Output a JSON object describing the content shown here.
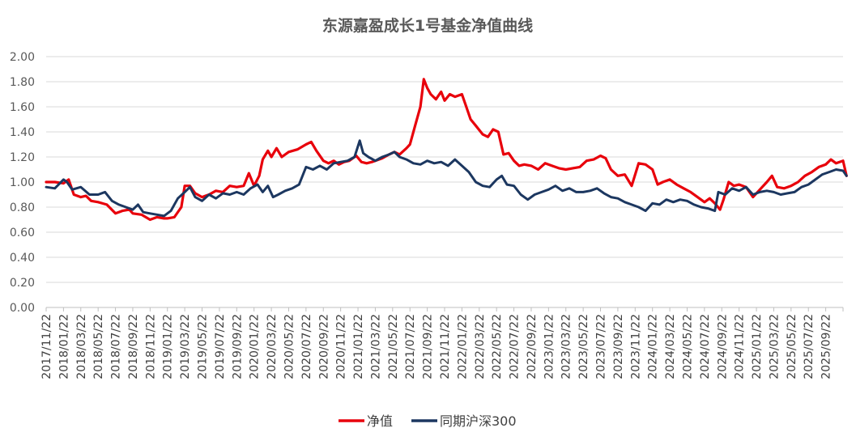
{
  "chart_data": {
    "type": "line",
    "title": "东源嘉盈成长1号基金净值曲线",
    "ylim": [
      0,
      2
    ],
    "yticks": [
      "0.00",
      "0.20",
      "0.40",
      "0.60",
      "0.80",
      "1.00",
      "1.20",
      "1.40",
      "1.60",
      "1.80",
      "2.00"
    ],
    "x_tick_labels": [
      "2017/11/22",
      "2018/01/22",
      "2018/03/22",
      "2018/05/22",
      "2018/07/22",
      "2018/09/22",
      "2018/11/22",
      "2019/01/22",
      "2019/03/22",
      "2019/05/22",
      "2019/07/22",
      "2019/09/22",
      "2020/01/22",
      "2020/03/22",
      "2020/05/22",
      "2020/07/22",
      "2020/09/22",
      "2020/11/22",
      "2021/01/22",
      "2021/03/22",
      "2021/05/22",
      "2021/07/22",
      "2021/09/22",
      "2021/11/22",
      "2022/01/22",
      "2022/03/22",
      "2022/05/22",
      "2022/07/22",
      "2022/09/22",
      "2023/01/22",
      "2023/03/22",
      "2023/05/22",
      "2023/07/22",
      "2023/09/22",
      "2023/11/22",
      "2024/01/22",
      "2024/03/22",
      "2024/05/22",
      "2024/07/22",
      "2024/09/22",
      "2024/11/22",
      "2025/01/22",
      "2025/03/22",
      "2025/05/22",
      "2025/07/22",
      "2025/09/22"
    ],
    "grid": true,
    "legend_position": "bottom",
    "series": [
      {
        "name": "净值",
        "color": "#e8000b",
        "points": [
          [
            0,
            1.0
          ],
          [
            0.5,
            1.0
          ],
          [
            1,
            0.99
          ],
          [
            1.3,
            1.02
          ],
          [
            1.6,
            0.9
          ],
          [
            2,
            0.88
          ],
          [
            2.3,
            0.89
          ],
          [
            2.6,
            0.85
          ],
          [
            3,
            0.84
          ],
          [
            3.5,
            0.82
          ],
          [
            4,
            0.75
          ],
          [
            4.4,
            0.77
          ],
          [
            4.8,
            0.78
          ],
          [
            5,
            0.75
          ],
          [
            5.5,
            0.74
          ],
          [
            6,
            0.7
          ],
          [
            6.4,
            0.72
          ],
          [
            6.8,
            0.71
          ],
          [
            7,
            0.71
          ],
          [
            7.4,
            0.72
          ],
          [
            7.8,
            0.8
          ],
          [
            8,
            0.97
          ],
          [
            8.3,
            0.97
          ],
          [
            8.6,
            0.91
          ],
          [
            9,
            0.88
          ],
          [
            9.4,
            0.9
          ],
          [
            9.8,
            0.93
          ],
          [
            10.2,
            0.92
          ],
          [
            10.6,
            0.97
          ],
          [
            11,
            0.96
          ],
          [
            11.4,
            0.97
          ],
          [
            11.7,
            1.07
          ],
          [
            12,
            0.97
          ],
          [
            12.3,
            1.05
          ],
          [
            12.5,
            1.18
          ],
          [
            12.8,
            1.25
          ],
          [
            13,
            1.2
          ],
          [
            13.3,
            1.27
          ],
          [
            13.6,
            1.2
          ],
          [
            14,
            1.24
          ],
          [
            14.5,
            1.26
          ],
          [
            15,
            1.3
          ],
          [
            15.3,
            1.32
          ],
          [
            15.6,
            1.25
          ],
          [
            16,
            1.17
          ],
          [
            16.3,
            1.15
          ],
          [
            16.6,
            1.17
          ],
          [
            16.9,
            1.14
          ],
          [
            17.2,
            1.16
          ],
          [
            17.5,
            1.17
          ],
          [
            17.9,
            1.21
          ],
          [
            18.2,
            1.16
          ],
          [
            18.5,
            1.15
          ],
          [
            18.8,
            1.16
          ],
          [
            19,
            1.17
          ],
          [
            19.4,
            1.19
          ],
          [
            19.8,
            1.22
          ],
          [
            20.1,
            1.24
          ],
          [
            20.4,
            1.22
          ],
          [
            20.8,
            1.27
          ],
          [
            21,
            1.3
          ],
          [
            21.3,
            1.45
          ],
          [
            21.6,
            1.6
          ],
          [
            21.8,
            1.82
          ],
          [
            22,
            1.75
          ],
          [
            22.2,
            1.7
          ],
          [
            22.5,
            1.66
          ],
          [
            22.8,
            1.72
          ],
          [
            23,
            1.65
          ],
          [
            23.3,
            1.7
          ],
          [
            23.6,
            1.68
          ],
          [
            24,
            1.7
          ],
          [
            24.2,
            1.62
          ],
          [
            24.5,
            1.5
          ],
          [
            24.8,
            1.45
          ],
          [
            25.2,
            1.38
          ],
          [
            25.5,
            1.36
          ],
          [
            25.8,
            1.42
          ],
          [
            26.1,
            1.4
          ],
          [
            26.4,
            1.22
          ],
          [
            26.7,
            1.23
          ],
          [
            27,
            1.17
          ],
          [
            27.3,
            1.13
          ],
          [
            27.6,
            1.14
          ],
          [
            28,
            1.13
          ],
          [
            28.4,
            1.1
          ],
          [
            28.8,
            1.15
          ],
          [
            29.2,
            1.13
          ],
          [
            29.6,
            1.11
          ],
          [
            30,
            1.1
          ],
          [
            30.4,
            1.11
          ],
          [
            30.8,
            1.12
          ],
          [
            31.2,
            1.17
          ],
          [
            31.6,
            1.18
          ],
          [
            32,
            1.21
          ],
          [
            32.3,
            1.19
          ],
          [
            32.6,
            1.1
          ],
          [
            33,
            1.05
          ],
          [
            33.4,
            1.06
          ],
          [
            33.8,
            0.97
          ],
          [
            34.2,
            1.15
          ],
          [
            34.6,
            1.14
          ],
          [
            35,
            1.1
          ],
          [
            35.3,
            0.98
          ],
          [
            35.6,
            1.0
          ],
          [
            36,
            1.02
          ],
          [
            36.4,
            0.98
          ],
          [
            36.8,
            0.95
          ],
          [
            37.2,
            0.92
          ],
          [
            37.6,
            0.88
          ],
          [
            38,
            0.84
          ],
          [
            38.3,
            0.87
          ],
          [
            38.6,
            0.83
          ],
          [
            38.9,
            0.78
          ],
          [
            39.1,
            0.86
          ],
          [
            39.4,
            1.0
          ],
          [
            39.7,
            0.97
          ],
          [
            40,
            0.98
          ],
          [
            40.4,
            0.96
          ],
          [
            40.8,
            0.88
          ],
          [
            41.2,
            0.94
          ],
          [
            41.6,
            1.0
          ],
          [
            41.9,
            1.05
          ],
          [
            42.2,
            0.96
          ],
          [
            42.6,
            0.95
          ],
          [
            43,
            0.97
          ],
          [
            43.4,
            1.0
          ],
          [
            43.8,
            1.05
          ],
          [
            44.2,
            1.08
          ],
          [
            44.6,
            1.12
          ],
          [
            45,
            1.14
          ],
          [
            45.3,
            1.18
          ],
          [
            45.6,
            1.15
          ],
          [
            46,
            1.17
          ],
          [
            46.2,
            1.05
          ]
        ]
      },
      {
        "name": "同期沪深300",
        "color": "#1c3760",
        "points": [
          [
            0,
            0.96
          ],
          [
            0.5,
            0.95
          ],
          [
            1,
            1.02
          ],
          [
            1.2,
            1.0
          ],
          [
            1.5,
            0.94
          ],
          [
            2,
            0.96
          ],
          [
            2.5,
            0.9
          ],
          [
            3,
            0.9
          ],
          [
            3.4,
            0.92
          ],
          [
            3.8,
            0.85
          ],
          [
            4.2,
            0.82
          ],
          [
            4.6,
            0.8
          ],
          [
            5,
            0.78
          ],
          [
            5.3,
            0.82
          ],
          [
            5.6,
            0.76
          ],
          [
            6,
            0.75
          ],
          [
            6.4,
            0.74
          ],
          [
            6.8,
            0.73
          ],
          [
            7.2,
            0.77
          ],
          [
            7.6,
            0.87
          ],
          [
            8,
            0.92
          ],
          [
            8.3,
            0.96
          ],
          [
            8.6,
            0.88
          ],
          [
            9,
            0.85
          ],
          [
            9.4,
            0.9
          ],
          [
            9.8,
            0.87
          ],
          [
            10.2,
            0.91
          ],
          [
            10.6,
            0.9
          ],
          [
            11,
            0.92
          ],
          [
            11.4,
            0.9
          ],
          [
            11.8,
            0.95
          ],
          [
            12.2,
            0.98
          ],
          [
            12.5,
            0.92
          ],
          [
            12.8,
            0.97
          ],
          [
            13.1,
            0.88
          ],
          [
            13.4,
            0.9
          ],
          [
            13.8,
            0.93
          ],
          [
            14.2,
            0.95
          ],
          [
            14.6,
            0.98
          ],
          [
            15,
            1.12
          ],
          [
            15.4,
            1.1
          ],
          [
            15.8,
            1.13
          ],
          [
            16.2,
            1.1
          ],
          [
            16.6,
            1.15
          ],
          [
            17,
            1.16
          ],
          [
            17.4,
            1.17
          ],
          [
            17.8,
            1.2
          ],
          [
            18.1,
            1.33
          ],
          [
            18.3,
            1.23
          ],
          [
            18.6,
            1.2
          ],
          [
            19,
            1.17
          ],
          [
            19.4,
            1.2
          ],
          [
            19.8,
            1.22
          ],
          [
            20.1,
            1.24
          ],
          [
            20.4,
            1.2
          ],
          [
            20.8,
            1.18
          ],
          [
            21.2,
            1.15
          ],
          [
            21.6,
            1.14
          ],
          [
            22,
            1.17
          ],
          [
            22.4,
            1.15
          ],
          [
            22.8,
            1.16
          ],
          [
            23.2,
            1.13
          ],
          [
            23.6,
            1.18
          ],
          [
            24,
            1.13
          ],
          [
            24.4,
            1.08
          ],
          [
            24.8,
            1.0
          ],
          [
            25.2,
            0.97
          ],
          [
            25.6,
            0.96
          ],
          [
            26,
            1.02
          ],
          [
            26.3,
            1.05
          ],
          [
            26.6,
            0.98
          ],
          [
            27,
            0.97
          ],
          [
            27.4,
            0.9
          ],
          [
            27.8,
            0.86
          ],
          [
            28.2,
            0.9
          ],
          [
            28.6,
            0.92
          ],
          [
            29,
            0.94
          ],
          [
            29.4,
            0.97
          ],
          [
            29.8,
            0.93
          ],
          [
            30.2,
            0.95
          ],
          [
            30.6,
            0.92
          ],
          [
            31,
            0.92
          ],
          [
            31.4,
            0.93
          ],
          [
            31.8,
            0.95
          ],
          [
            32.2,
            0.91
          ],
          [
            32.6,
            0.88
          ],
          [
            33,
            0.87
          ],
          [
            33.4,
            0.84
          ],
          [
            33.8,
            0.82
          ],
          [
            34.2,
            0.8
          ],
          [
            34.6,
            0.77
          ],
          [
            35,
            0.83
          ],
          [
            35.4,
            0.82
          ],
          [
            35.8,
            0.86
          ],
          [
            36.2,
            0.84
          ],
          [
            36.6,
            0.86
          ],
          [
            37,
            0.85
          ],
          [
            37.4,
            0.82
          ],
          [
            37.8,
            0.8
          ],
          [
            38.2,
            0.79
          ],
          [
            38.6,
            0.77
          ],
          [
            38.8,
            0.92
          ],
          [
            39.2,
            0.9
          ],
          [
            39.6,
            0.95
          ],
          [
            40,
            0.93
          ],
          [
            40.4,
            0.96
          ],
          [
            40.8,
            0.9
          ],
          [
            41.2,
            0.92
          ],
          [
            41.6,
            0.93
          ],
          [
            42,
            0.92
          ],
          [
            42.4,
            0.9
          ],
          [
            42.8,
            0.91
          ],
          [
            43.2,
            0.92
          ],
          [
            43.6,
            0.96
          ],
          [
            44,
            0.98
          ],
          [
            44.4,
            1.02
          ],
          [
            44.8,
            1.06
          ],
          [
            45.2,
            1.08
          ],
          [
            45.6,
            1.1
          ],
          [
            46,
            1.09
          ],
          [
            46.2,
            1.05
          ]
        ]
      }
    ]
  }
}
